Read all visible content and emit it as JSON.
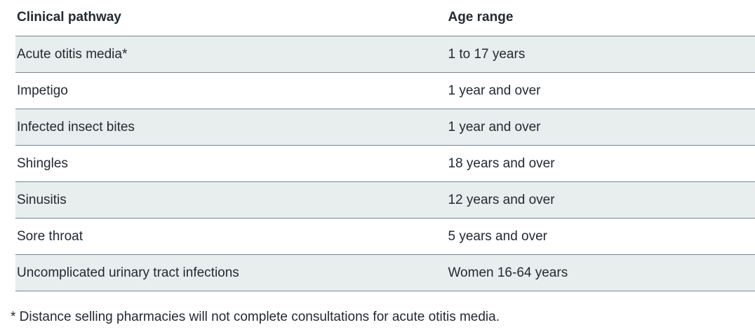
{
  "table": {
    "columns": [
      {
        "label": "Clinical pathway",
        "cell_name": "pathway-cell"
      },
      {
        "label": "Age range",
        "cell_name": "age-range-cell"
      }
    ],
    "rows": [
      [
        "Acute otitis media*",
        "1 to 17 years"
      ],
      [
        "Impetigo",
        "1 year and over"
      ],
      [
        "Infected insect bites",
        "1 year and over"
      ],
      [
        "Shingles",
        "18 years and over"
      ],
      [
        "Sinusitis",
        "12 years and over"
      ],
      [
        "Sore throat",
        "5 years and over"
      ],
      [
        "Uncomplicated urinary tract infections",
        "Women 16-64 years"
      ]
    ]
  },
  "footnote": "* Distance selling pharmacies will not complete consultations for acute otitis media.",
  "colors": {
    "text": "#212b32",
    "stripe": "#e8edee",
    "border": "#768692",
    "background": "#ffffff"
  }
}
